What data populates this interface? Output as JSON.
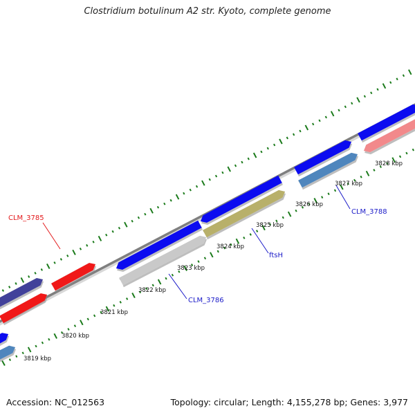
{
  "title": "Clostridium botulinum A2 str. Kyoto, complete genome",
  "footer": {
    "accession": "Accession: NC_012563",
    "summary": "Topology: circular; Length: 4,155,278 bp; Genes: 3,977"
  },
  "colors": {
    "backbone": "#7f7f7f",
    "ticks": "#1a7a1a",
    "gene_blue": "#0b0bf0",
    "gene_red": "#f01818",
    "gene_navy": "#41419a",
    "gene_steel": "#4f86bd",
    "gene_pink": "#f2898b",
    "gene_silver": "#c9c9c9",
    "gene_olive": "#b8b06a",
    "label_red": "#e31a1c",
    "label_blue": "#1a1ac8"
  },
  "kbp_labels": [
    "3819 kbp",
    "3820 kbp",
    "3821 kbp",
    "3822 kbp",
    "3823 kbp",
    "3824 kbp",
    "3825 kbp",
    "3826 kbp",
    "3827 kbp",
    "3828 kbp"
  ],
  "gene_labels": [
    "CLM_3785",
    "CLM_3786",
    "ftsH",
    "CLM_3788"
  ]
}
